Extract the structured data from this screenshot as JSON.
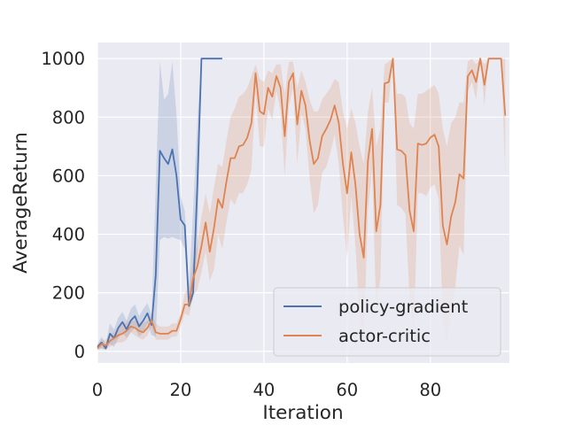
{
  "chart_data": {
    "type": "line",
    "xlabel": "Iteration",
    "ylabel": "AverageReturn",
    "xlim": [
      0,
      99
    ],
    "ylim": [
      -40,
      1055
    ],
    "xticks": [
      0,
      20,
      40,
      60,
      80
    ],
    "yticks": [
      0,
      200,
      400,
      600,
      800,
      1000
    ],
    "grid": true,
    "legend_position": "lower-right",
    "background": "#eaeaf2",
    "series": [
      {
        "name": "policy-gradient",
        "color": "#4c72b0",
        "x": [
          0,
          1,
          2,
          3,
          4,
          5,
          6,
          7,
          8,
          9,
          10,
          11,
          12,
          13,
          14,
          15,
          16,
          17,
          18,
          19,
          20,
          21,
          22,
          23,
          24,
          25,
          26,
          27,
          28,
          29,
          30
        ],
        "y": [
          15,
          30,
          10,
          60,
          45,
          80,
          100,
          75,
          105,
          120,
          85,
          105,
          130,
          90,
          260,
          685,
          660,
          640,
          690,
          600,
          450,
          430,
          155,
          200,
          560,
          1000,
          1000,
          1000,
          1000,
          1000,
          1000
        ],
        "upper": [
          25,
          50,
          25,
          95,
          75,
          115,
          135,
          105,
          145,
          160,
          120,
          145,
          165,
          125,
          560,
          990,
          860,
          880,
          990,
          810,
          530,
          480,
          220,
          480,
          780,
          1000,
          1000,
          1000,
          1000,
          1000,
          1000
        ],
        "lower": [
          5,
          10,
          5,
          25,
          15,
          45,
          65,
          45,
          65,
          80,
          50,
          65,
          95,
          55,
          50,
          380,
          390,
          385,
          390,
          385,
          380,
          350,
          145,
          180,
          340,
          1000,
          1000,
          1000,
          1000,
          1000,
          1000
        ]
      },
      {
        "name": "actor-critic",
        "color": "#dd8452",
        "x": [
          0,
          1,
          2,
          3,
          4,
          5,
          6,
          7,
          8,
          9,
          10,
          11,
          12,
          13,
          14,
          15,
          16,
          17,
          18,
          19,
          20,
          21,
          22,
          23,
          24,
          25,
          26,
          27,
          28,
          29,
          30,
          31,
          32,
          33,
          34,
          35,
          36,
          37,
          38,
          39,
          40,
          41,
          42,
          43,
          44,
          45,
          46,
          47,
          48,
          49,
          50,
          51,
          52,
          53,
          54,
          55,
          56,
          57,
          58,
          59,
          60,
          61,
          62,
          63,
          64,
          65,
          66,
          67,
          68,
          69,
          70,
          71,
          72,
          73,
          74,
          75,
          76,
          77,
          78,
          79,
          80,
          81,
          82,
          83,
          84,
          85,
          86,
          87,
          88,
          89,
          90,
          91,
          92,
          93,
          94,
          95,
          96,
          97,
          98
        ],
        "y": [
          10,
          25,
          20,
          35,
          45,
          55,
          60,
          70,
          85,
          80,
          70,
          65,
          80,
          105,
          65,
          60,
          60,
          60,
          70,
          70,
          110,
          160,
          160,
          250,
          290,
          360,
          440,
          340,
          420,
          520,
          490,
          580,
          660,
          660,
          700,
          705,
          730,
          780,
          950,
          820,
          810,
          900,
          870,
          940,
          900,
          735,
          920,
          950,
          775,
          890,
          840,
          720,
          640,
          660,
          735,
          760,
          790,
          840,
          780,
          640,
          540,
          680,
          570,
          400,
          320,
          650,
          760,
          410,
          500,
          915,
          920,
          1000,
          690,
          685,
          670,
          480,
          410,
          710,
          705,
          710,
          730,
          740,
          700,
          430,
          365,
          460,
          510,
          605,
          590,
          940,
          960,
          920,
          1000,
          910,
          1000,
          1000,
          1000,
          1000,
          805
        ],
        "upper": [
          20,
          40,
          40,
          60,
          65,
          80,
          90,
          100,
          105,
          105,
          100,
          95,
          105,
          125,
          95,
          85,
          85,
          85,
          95,
          95,
          130,
          200,
          220,
          310,
          370,
          460,
          540,
          470,
          560,
          640,
          630,
          720,
          800,
          830,
          870,
          880,
          900,
          940,
          980,
          930,
          920,
          960,
          950,
          980,
          980,
          880,
          990,
          990,
          900,
          960,
          920,
          860,
          820,
          820,
          860,
          880,
          900,
          930,
          920,
          820,
          760,
          830,
          780,
          700,
          640,
          820,
          900,
          700,
          760,
          980,
          990,
          1000,
          880,
          880,
          870,
          780,
          760,
          880,
          880,
          890,
          900,
          910,
          880,
          760,
          700,
          780,
          800,
          850,
          850,
          990,
          1000,
          980,
          1000,
          980,
          1000,
          1000,
          1000,
          1000,
          1000
        ],
        "lower": [
          5,
          10,
          5,
          15,
          25,
          30,
          30,
          40,
          65,
          55,
          45,
          40,
          55,
          85,
          40,
          40,
          40,
          40,
          50,
          50,
          85,
          130,
          120,
          190,
          210,
          270,
          340,
          240,
          280,
          400,
          350,
          440,
          520,
          500,
          540,
          540,
          570,
          620,
          880,
          700,
          700,
          830,
          790,
          890,
          820,
          600,
          840,
          900,
          640,
          810,
          760,
          590,
          470,
          500,
          610,
          630,
          680,
          740,
          640,
          460,
          320,
          530,
          360,
          120,
          30,
          480,
          620,
          130,
          250,
          850,
          850,
          1000,
          500,
          490,
          470,
          180,
          60,
          540,
          540,
          530,
          560,
          570,
          520,
          110,
          30,
          140,
          220,
          360,
          330,
          890,
          920,
          860,
          1000,
          840,
          1000,
          1000,
          1000,
          1000,
          610
        ]
      }
    ]
  }
}
